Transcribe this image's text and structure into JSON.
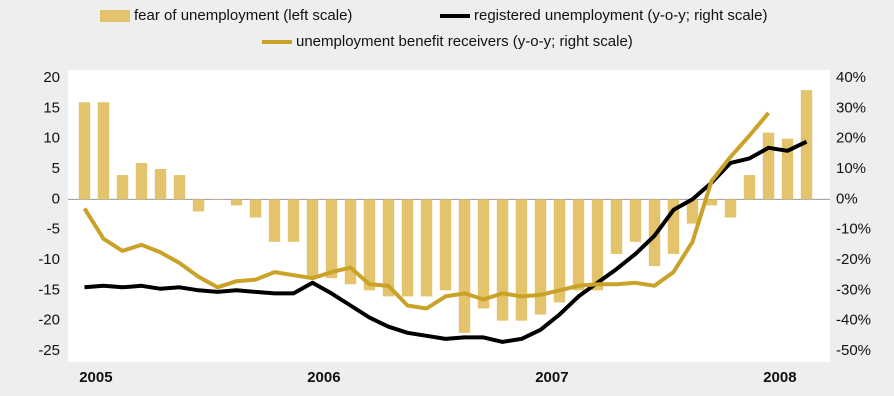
{
  "chart_data": {
    "type": "bar_line",
    "categories": [
      "2005",
      null,
      null,
      null,
      null,
      null,
      null,
      null,
      null,
      null,
      null,
      null,
      "2006",
      null,
      null,
      null,
      null,
      null,
      null,
      null,
      null,
      null,
      null,
      null,
      "2007",
      null,
      null,
      null,
      null,
      null,
      null,
      null,
      null,
      null,
      null,
      null,
      "2008",
      null,
      null
    ],
    "series": [
      {
        "name": "fear of unemployment (left scale)",
        "color": "#e3c46c",
        "kind": "bar",
        "axis": "y",
        "values": [
          16,
          16,
          4,
          6,
          5,
          4,
          -2,
          0,
          -1,
          -3,
          -7,
          -7,
          -13,
          -13,
          -14,
          -15,
          -16,
          -16,
          -16,
          -15,
          -22,
          -18,
          -20,
          -20,
          -19,
          -17,
          -15,
          -15,
          -9,
          -7,
          -11,
          -9,
          -4,
          -1,
          -3,
          4,
          11,
          10,
          18
        ]
      },
      {
        "name": "registered unemployment (y-o-y; right scale)",
        "color": "#000000",
        "kind": "line",
        "axis": "y2",
        "values": [
          -29,
          -28.5,
          -29,
          -28.5,
          -29.5,
          -29,
          -30,
          -30.5,
          -30,
          -30.5,
          -31,
          -31,
          -27.5,
          -31,
          -35,
          -39,
          -42,
          -44,
          -45,
          -46,
          -45.5,
          -45.5,
          -47,
          -46,
          -43,
          -38,
          -32,
          -27.5,
          -23,
          -18,
          -12,
          -3.5,
          0,
          5.5,
          12,
          13.5,
          17,
          16,
          19
        ]
      },
      {
        "name": "unemployment benefit receivers (y-o-y; right scale)",
        "color": "#c9a227",
        "kind": "line",
        "axis": "y2",
        "values": [
          -3,
          -13,
          -17,
          -15,
          -17.5,
          -21,
          -25.5,
          -29,
          -27,
          -26.5,
          -24,
          -25,
          -26,
          -24,
          -22.5,
          -28,
          -28.5,
          -35,
          -36,
          -32,
          -31,
          -33,
          -31,
          -32,
          -31.5,
          -30,
          -28.5,
          -28,
          -28,
          -27.5,
          -28.5,
          -24,
          -14,
          6,
          14,
          21,
          28.5,
          null,
          null
        ]
      }
    ],
    "ylim": [
      -25,
      20
    ],
    "yticks": [
      -25,
      -20,
      -15,
      -10,
      -5,
      0,
      5,
      10,
      15,
      20
    ],
    "y2lim": [
      -50,
      40
    ],
    "y2ticks": [
      {
        "value": -50,
        "label": "-50%"
      },
      {
        "value": -40,
        "label": "-40%"
      },
      {
        "value": -30,
        "label": "-30%"
      },
      {
        "value": -20,
        "label": "-20%"
      },
      {
        "value": -10,
        "label": "-10%"
      },
      {
        "value": 0,
        "label": "0%"
      },
      {
        "value": 10,
        "label": "10%"
      },
      {
        "value": 20,
        "label": "20%"
      },
      {
        "value": 30,
        "label": "30%"
      },
      {
        "value": 40,
        "label": "40%"
      }
    ],
    "legend": "top"
  }
}
